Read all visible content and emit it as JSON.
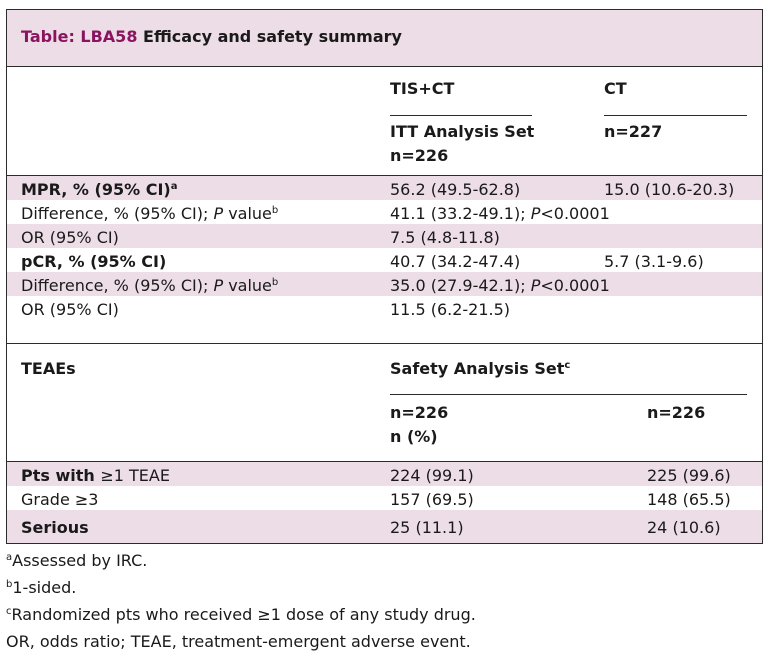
{
  "table": {
    "title_code": "Table: LBA58",
    "title_rest": "Efficacy and safety summary",
    "header": {
      "col2": "TIS+CT",
      "col3": "CT",
      "col2_sub": "ITT Analysis Set",
      "col2_n": "n=226",
      "col3_n": "n=227"
    },
    "efficacy_rows": [
      {
        "label": "MPR, % (95% CI)",
        "sup": "a",
        "c2": "56.2 (49.5-62.8)",
        "c3": "15.0 (10.6-20.3)"
      },
      {
        "label": "Difference, % (95% CI); ",
        "p": "P",
        "label_tail": " value",
        "sup": "b",
        "c2_pre": "41.1 (33.2-49.1); ",
        "c2_p": "P",
        "c2_post": "<0.0001"
      },
      {
        "label": "OR (95% CI)",
        "c2": "7.5 (4.8-11.8)"
      },
      {
        "label": "pCR, % (95% CI)",
        "c2": "40.7 (34.2-47.4)",
        "c3": "5.7 (3.1-9.6)"
      },
      {
        "label": "Difference, % (95% CI); ",
        "p": "P",
        "label_tail": " value",
        "sup": "b",
        "c2_pre": "35.0 (27.9-42.1); ",
        "c2_p": "P",
        "c2_post": "<0.0001"
      },
      {
        "label": "OR (95% CI)",
        "c2": "11.5 (6.2-21.5)"
      }
    ],
    "safety_header": {
      "col1": "TEAEs",
      "span": "Safety Analysis Set",
      "span_sup": "c",
      "col2_n": "n=226",
      "col2_unit": "n (%)",
      "col3_n": "n=226"
    },
    "safety_rows": [
      {
        "pre": "Pts with ",
        "geq": "≥",
        "post": "1 TEAE",
        "c2": "224 (99.1)",
        "c3": "225 (99.6)"
      },
      {
        "pre": "Grade ",
        "geq": "≥",
        "post": "3",
        "c2": "157 (69.5)",
        "c3": "148 (65.5)"
      },
      {
        "label": "Serious",
        "c2": "25 (11.1)",
        "c3": "24 (10.6)"
      }
    ]
  },
  "footnotes": [
    {
      "sup": "a",
      "text": "Assessed by IRC."
    },
    {
      "sup": "b",
      "text": "1-sided."
    },
    {
      "sup": "c",
      "text": "Randomized pts who received ≥1 dose of any study drug."
    },
    {
      "text": "OR, odds ratio; TEAE, treatment-emergent adverse event."
    }
  ],
  "colors": {
    "band": "#ecdde6",
    "title_code": "#8b1460",
    "rule": "#2b2b2b"
  }
}
